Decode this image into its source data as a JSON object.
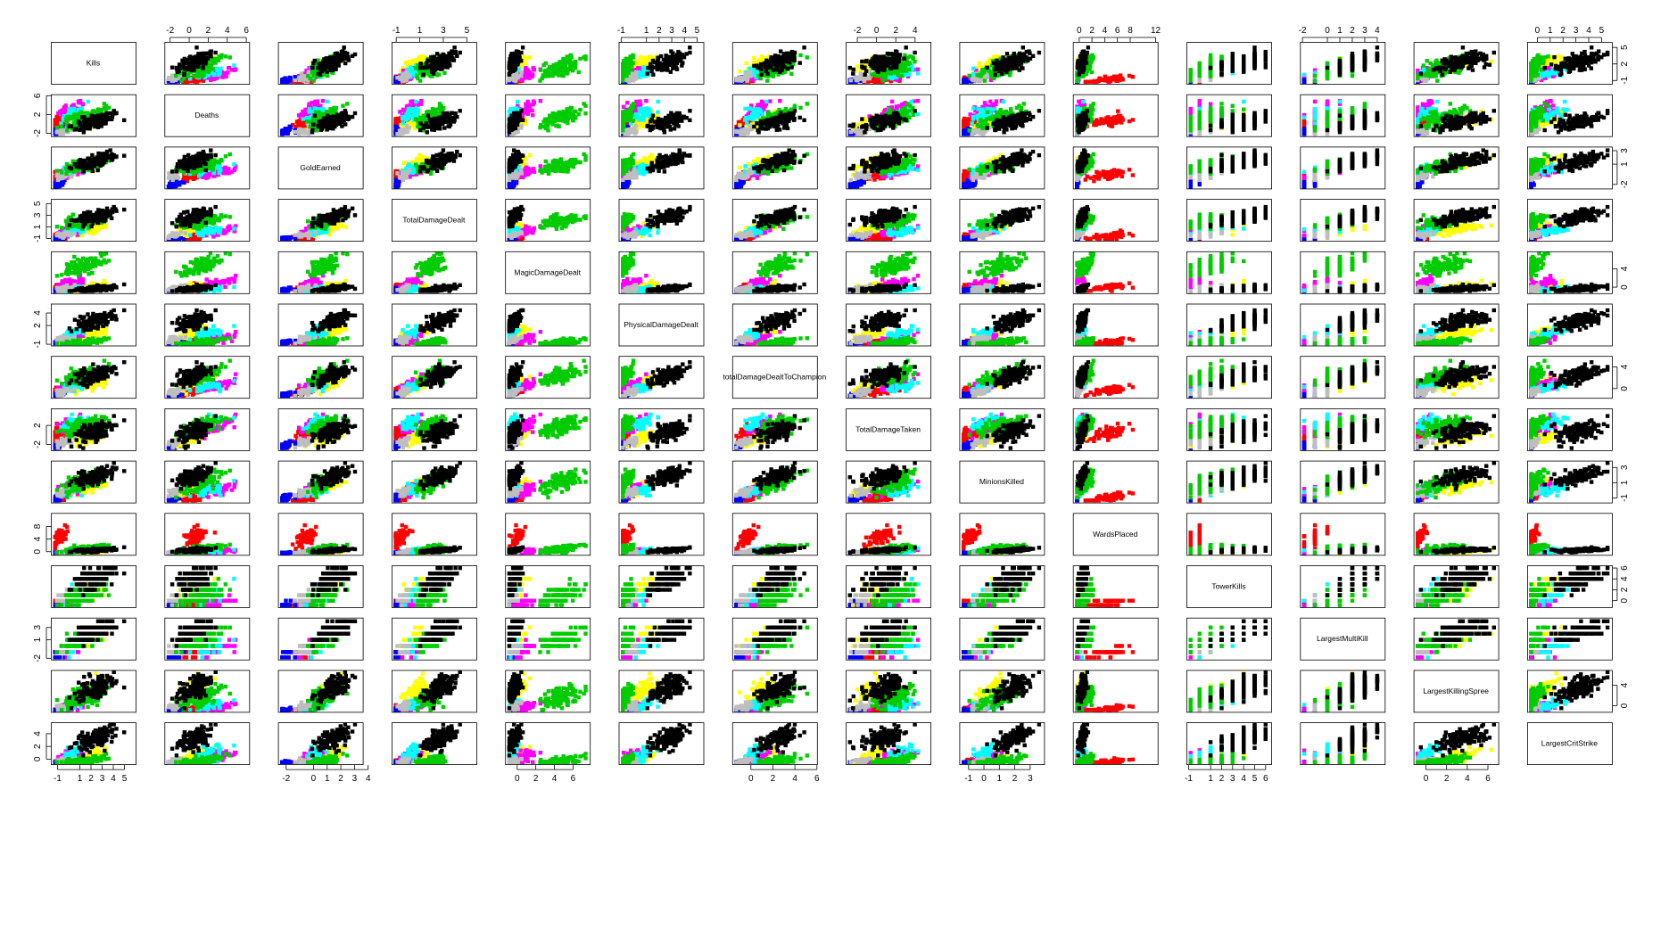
{
  "chart_data": {
    "type": "scatter",
    "subtype": "scatterplot-matrix",
    "title": "",
    "variables": [
      "Kills",
      "Deaths",
      "GoldEarned",
      "TotalDamageDealt",
      "MagicDamageDealt",
      "PhysicalDamageDealt",
      "TotalDamageDealtToChampions",
      "TotalDamageTaken",
      "MinionsKilled",
      "WardsPlaced",
      "TowerKills",
      "LargestMultiKill",
      "LargestKillingSpree",
      "LargestCritStrike"
    ],
    "diagonal_labels": [
      "Kills",
      "Deaths",
      "GoldEarned",
      "TotalDamageDealt",
      "MagicDamageDealt",
      "PhysicalDamageDealt",
      "totalDamageDealtToChampion",
      "TotalDamageTaken",
      "MinionsKilled",
      "WardsPlaced",
      "TowerKills",
      "LargestMultiKill",
      "LargestKillingSpree",
      "LargestCritStrike"
    ],
    "ranges": [
      [
        -1.6,
        6.0
      ],
      [
        -2.6,
        6.3
      ],
      [
        -2.6,
        3.6
      ],
      [
        -1.4,
        5.8
      ],
      [
        -1.3,
        7.8
      ],
      [
        -1.2,
        5.5
      ],
      [
        -1.7,
        6.0
      ],
      [
        -3.2,
        5.6
      ],
      [
        -1.6,
        3.9
      ],
      [
        -1.0,
        12.3
      ],
      [
        -1.2,
        6.5
      ],
      [
        -2.2,
        4.6
      ],
      [
        -1.2,
        7.0
      ],
      [
        -0.8,
        5.8
      ]
    ],
    "discrete_variables": [
      10,
      11
    ],
    "cluster_colors": [
      "#000000",
      "#00cc00",
      "#ff0000",
      "#0000ff",
      "#ffff00",
      "#ff00ff",
      "#00ffff",
      "#bebebe"
    ],
    "cluster_centers": [
      [
        2.5,
        0.6,
        1.5,
        2.8,
        -0.3,
        2.8,
        2.6,
        0.8,
        1.9,
        0.5,
        4.2,
        2.4,
        3.5,
        3.3
      ],
      [
        1.2,
        1.3,
        0.8,
        2.0,
        4.6,
        -0.8,
        2.4,
        1.8,
        1.0,
        0.8,
        1.0,
        1.0,
        1.6,
        -0.4
      ],
      [
        -0.7,
        0.8,
        -0.5,
        -0.6,
        0.1,
        -0.7,
        -0.2,
        0.5,
        -0.9,
        5.0,
        -0.4,
        -0.9,
        -0.6,
        -0.5
      ],
      [
        -1.0,
        -1.5,
        -1.9,
        -1.0,
        -0.6,
        -0.7,
        -1.1,
        -2.2,
        -1.0,
        -0.6,
        -0.8,
        -1.6,
        -0.9,
        -0.6
      ],
      [
        1.8,
        0.3,
        1.0,
        0.6,
        -0.1,
        0.7,
        0.8,
        -0.8,
        0.5,
        -0.2,
        2.0,
        1.2,
        3.0,
        0.3
      ],
      [
        0.2,
        3.0,
        -0.2,
        0.2,
        0.8,
        -0.2,
        0.6,
        1.8,
        0.1,
        -0.2,
        -0.5,
        -0.5,
        -0.3,
        0.4
      ],
      [
        0.5,
        2.2,
        0.3,
        0.4,
        -0.5,
        0.9,
        0.4,
        2.6,
        0.2,
        0.2,
        1.0,
        0.0,
        0.2,
        1.0
      ],
      [
        -0.5,
        -1.6,
        -0.8,
        -0.4,
        -0.4,
        -0.2,
        -0.6,
        -1.6,
        -0.2,
        -0.3,
        0.5,
        -0.6,
        -0.2,
        -0.3
      ]
    ],
    "cluster_spread": [
      [
        1.3,
        1.3,
        0.8,
        1.0,
        0.5,
        1.0,
        1.2,
        1.5,
        0.8,
        0.5,
        1.5,
        1.2,
        1.8,
        1.2
      ],
      [
        1.4,
        1.4,
        0.8,
        0.9,
        1.5,
        0.5,
        1.2,
        1.5,
        0.9,
        1.0,
        1.3,
        1.1,
        1.6,
        0.6
      ],
      [
        0.5,
        1.1,
        0.6,
        0.6,
        0.6,
        0.5,
        0.6,
        1.0,
        0.5,
        2.0,
        0.7,
        0.6,
        0.6,
        0.6
      ],
      [
        0.4,
        0.6,
        0.5,
        0.3,
        0.3,
        0.3,
        0.4,
        0.6,
        0.4,
        0.5,
        0.5,
        0.5,
        0.3,
        0.3
      ],
      [
        1.0,
        1.0,
        0.7,
        0.6,
        0.6,
        0.6,
        0.8,
        1.0,
        0.6,
        0.6,
        1.5,
        1.0,
        1.6,
        0.8
      ],
      [
        0.7,
        1.3,
        0.6,
        0.6,
        0.9,
        0.6,
        0.8,
        1.3,
        0.6,
        0.7,
        0.7,
        0.8,
        0.7,
        0.8
      ],
      [
        0.8,
        1.2,
        0.6,
        0.6,
        0.5,
        0.7,
        0.7,
        1.2,
        0.6,
        0.7,
        1.3,
        1.0,
        0.8,
        1.0
      ],
      [
        0.6,
        0.8,
        0.5,
        0.5,
        0.5,
        0.5,
        0.6,
        0.8,
        0.5,
        0.6,
        1.0,
        0.7,
        0.6,
        0.5
      ]
    ],
    "cluster_weights": [
      0.26,
      0.22,
      0.12,
      0.08,
      0.12,
      0.08,
      0.07,
      0.05
    ],
    "axis_ticks": {
      "top": [
        {
          "col": 1,
          "labels": [
            "-2",
            "0",
            "2",
            "4",
            "6"
          ],
          "values": [
            -2,
            0,
            2,
            4,
            6
          ]
        },
        {
          "col": 3,
          "labels": [
            "-1",
            "1",
            "3",
            "5"
          ],
          "values": [
            -1,
            1,
            3,
            5
          ]
        },
        {
          "col": 5,
          "labels": [
            "-1",
            "1",
            "2",
            "3",
            "4",
            "5"
          ],
          "values": [
            -1,
            1,
            2,
            3,
            4,
            5
          ]
        },
        {
          "col": 7,
          "labels": [
            "-2",
            "0",
            "2",
            "4"
          ],
          "values": [
            -2,
            0,
            2,
            4
          ]
        },
        {
          "col": 9,
          "labels": [
            "0",
            "2",
            "4",
            "6",
            "8",
            "12"
          ],
          "values": [
            0,
            2,
            4,
            6,
            8,
            12
          ]
        },
        {
          "col": 11,
          "labels": [
            "-2",
            "0",
            "1",
            "2",
            "3",
            "4"
          ],
          "values": [
            -2,
            0,
            1,
            2,
            3,
            4
          ]
        },
        {
          "col": 13,
          "labels": [
            "0",
            "1",
            "2",
            "3",
            "4",
            "5"
          ],
          "values": [
            0,
            1,
            2,
            3,
            4,
            5
          ]
        }
      ],
      "bottom": [
        {
          "col": 0,
          "labels": [
            "-1",
            "1",
            "2",
            "3",
            "4",
            "5"
          ],
          "values": [
            -1,
            1,
            2,
            3,
            4,
            5
          ]
        },
        {
          "col": 2,
          "labels": [
            "-2",
            "0",
            "1",
            "2",
            "3",
            "4"
          ],
          "values": [
            -2,
            0,
            1,
            2,
            3,
            4
          ]
        },
        {
          "col": 4,
          "labels": [
            "0",
            "2",
            "4",
            "6"
          ],
          "values": [
            0,
            2,
            4,
            6
          ]
        },
        {
          "col": 6,
          "labels": [
            "0",
            "2",
            "4",
            "6"
          ],
          "values": [
            0,
            2,
            4,
            6
          ]
        },
        {
          "col": 8,
          "labels": [
            "-1",
            "0",
            "1",
            "2",
            "3"
          ],
          "values": [
            -1,
            0,
            1,
            2,
            3
          ]
        },
        {
          "col": 10,
          "labels": [
            "-1",
            "1",
            "2",
            "3",
            "4",
            "5",
            "6"
          ],
          "values": [
            -1,
            1,
            2,
            3,
            4,
            5,
            6
          ]
        },
        {
          "col": 12,
          "labels": [
            "0",
            "2",
            "4",
            "6"
          ],
          "values": [
            0,
            2,
            4,
            6
          ]
        }
      ],
      "left": [
        {
          "row": 1,
          "labels": [
            "-2",
            "2",
            "6"
          ],
          "values": [
            -2,
            2,
            6
          ]
        },
        {
          "row": 3,
          "labels": [
            "-1",
            "1",
            "3",
            "5"
          ],
          "values": [
            -1,
            1,
            3,
            5
          ]
        },
        {
          "row": 5,
          "labels": [
            "-1",
            "2",
            "4"
          ],
          "values": [
            -1,
            2,
            4
          ]
        },
        {
          "row": 7,
          "labels": [
            "-2",
            "2"
          ],
          "values": [
            -2,
            2
          ]
        },
        {
          "row": 9,
          "labels": [
            "0",
            "4",
            "8"
          ],
          "values": [
            0,
            4,
            8
          ]
        },
        {
          "row": 11,
          "labels": [
            "-2",
            "1",
            "3"
          ],
          "values": [
            -2,
            1,
            3
          ]
        },
        {
          "row": 13,
          "labels": [
            "0",
            "2",
            "4"
          ],
          "values": [
            0,
            2,
            4
          ]
        }
      ],
      "right": [
        {
          "row": 0,
          "labels": [
            "-1",
            "2",
            "5"
          ],
          "values": [
            -1,
            2,
            5
          ]
        },
        {
          "row": 2,
          "labels": [
            "-2",
            "1",
            "3"
          ],
          "values": [
            -2,
            1,
            3
          ]
        },
        {
          "row": 4,
          "labels": [
            "0",
            "4"
          ],
          "values": [
            0,
            4
          ]
        },
        {
          "row": 6,
          "labels": [
            "0",
            "4"
          ],
          "values": [
            0,
            4
          ]
        },
        {
          "row": 8,
          "labels": [
            "-1",
            "1",
            "3"
          ],
          "values": [
            -1,
            1,
            3
          ]
        },
        {
          "row": 10,
          "labels": [
            "0",
            "2",
            "4",
            "6"
          ],
          "values": [
            0,
            2,
            4,
            6
          ]
        },
        {
          "row": 12,
          "labels": [
            "0",
            "4"
          ],
          "values": [
            0,
            4
          ]
        }
      ]
    },
    "grid": false,
    "legend": "none"
  }
}
